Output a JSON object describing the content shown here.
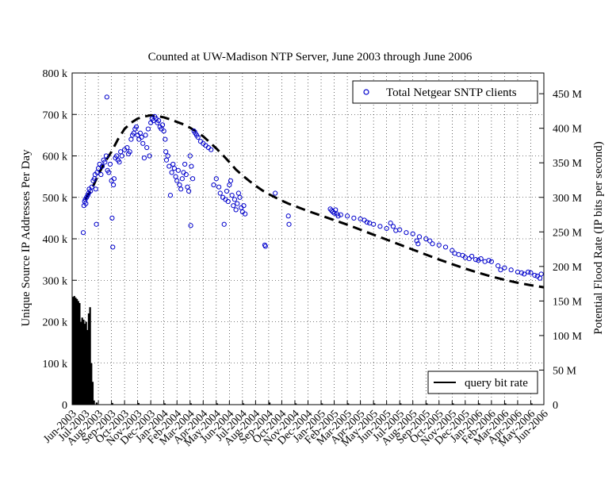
{
  "chart_data": {
    "type": "scatter",
    "title": "Counted at UW-Madison NTP Server, June 2003 through June 2006",
    "ylabel": "Unique Source IP Addresses Per Day",
    "y2label": "Potential Flood Rate (IP bits per second)",
    "ylim": [
      0,
      800000
    ],
    "y2lim": [
      0,
      480000000
    ],
    "grid": true,
    "x_tick_labels": [
      "Jun-2003",
      "Jul-2003",
      "Aug-2003",
      "Sep-2003",
      "Oct-2003",
      "Nov-2003",
      "Dec-2003",
      "Jan-2004",
      "Feb-2004",
      "Mar-2004",
      "Apr-2004",
      "May-2004",
      "Jun-2004",
      "Jul-2004",
      "Aug-2004",
      "Sep-2004",
      "Oct-2004",
      "Nov-2004",
      "Dec-2004",
      "Jan-2005",
      "Feb-2005",
      "Mar-2005",
      "Apr-2005",
      "May-2005",
      "Jun-2005",
      "Jul-2005",
      "Aug-2005",
      "Sep-2005",
      "Oct-2005",
      "Nov-2005",
      "Dec-2005",
      "Jan-2006",
      "Feb-2006",
      "Mar-2006",
      "Apr-2006",
      "May-2006",
      "Jun-2006"
    ],
    "y_tick_labels": [
      "0",
      "100 k",
      "200 k",
      "300 k",
      "400 k",
      "500 k",
      "600 k",
      "700 k",
      "800 k"
    ],
    "y_ticks": [
      0,
      100000,
      200000,
      300000,
      400000,
      500000,
      600000,
      700000,
      800000
    ],
    "y2_tick_labels": [
      "0",
      "50 M",
      "100 M",
      "150 M",
      "200 M",
      "250 M",
      "300 M",
      "350 M",
      "400 M",
      "450 M"
    ],
    "y2_ticks": [
      0,
      50000000,
      100000000,
      150000000,
      200000000,
      250000000,
      300000000,
      350000000,
      400000000,
      450000000
    ],
    "legend_top": {
      "label": "Total Netgear SNTP clients",
      "marker": "circle",
      "color": "#0000cc",
      "placement": "top-right"
    },
    "legend_bottom": {
      "label": "query bit rate",
      "style": "dashed",
      "color": "#000000",
      "placement": "bottom-right"
    },
    "series": [
      {
        "name": "Total Netgear SNTP clients",
        "kind": "scatter",
        "color": "#0000cc",
        "points": [
          [
            0.85,
            415000
          ],
          [
            0.9,
            480000
          ],
          [
            0.95,
            490000
          ],
          [
            1.0,
            495000
          ],
          [
            1.05,
            485000
          ],
          [
            1.1,
            500000
          ],
          [
            1.2,
            505000
          ],
          [
            1.25,
            510000
          ],
          [
            1.3,
            520000
          ],
          [
            1.4,
            515000
          ],
          [
            1.5,
            525000
          ],
          [
            1.6,
            540000
          ],
          [
            1.7,
            545000
          ],
          [
            1.75,
            555000
          ],
          [
            1.8,
            520000
          ],
          [
            1.85,
            435000
          ],
          [
            1.9,
            560000
          ],
          [
            2.0,
            570000
          ],
          [
            2.1,
            580000
          ],
          [
            2.2,
            555000
          ],
          [
            2.3,
            575000
          ],
          [
            2.4,
            590000
          ],
          [
            2.5,
            585000
          ],
          [
            2.6,
            600000
          ],
          [
            2.65,
            742000
          ],
          [
            2.7,
            565000
          ],
          [
            2.8,
            560000
          ],
          [
            2.9,
            580000
          ],
          [
            3.0,
            540000
          ],
          [
            3.05,
            450000
          ],
          [
            3.1,
            380000
          ],
          [
            3.15,
            530000
          ],
          [
            3.2,
            545000
          ],
          [
            3.3,
            595000
          ],
          [
            3.4,
            600000
          ],
          [
            3.5,
            590000
          ],
          [
            3.6,
            585000
          ],
          [
            3.7,
            610000
          ],
          [
            3.8,
            600000
          ],
          [
            4.0,
            615000
          ],
          [
            4.2,
            620000
          ],
          [
            4.3,
            605000
          ],
          [
            4.4,
            610000
          ],
          [
            4.5,
            640000
          ],
          [
            4.6,
            650000
          ],
          [
            4.7,
            655000
          ],
          [
            4.8,
            665000
          ],
          [
            4.9,
            670000
          ],
          [
            5.0,
            650000
          ],
          [
            5.1,
            640000
          ],
          [
            5.2,
            655000
          ],
          [
            5.3,
            645000
          ],
          [
            5.4,
            630000
          ],
          [
            5.5,
            595000
          ],
          [
            5.6,
            650000
          ],
          [
            5.7,
            620000
          ],
          [
            5.8,
            665000
          ],
          [
            5.9,
            600000
          ],
          [
            6.0,
            680000
          ],
          [
            6.1,
            690000
          ],
          [
            6.2,
            685000
          ],
          [
            6.3,
            695000
          ],
          [
            6.4,
            690000
          ],
          [
            6.5,
            680000
          ],
          [
            6.6,
            685000
          ],
          [
            6.7,
            670000
          ],
          [
            6.8,
            665000
          ],
          [
            6.9,
            675000
          ],
          [
            7.0,
            660000
          ],
          [
            7.1,
            640000
          ],
          [
            7.15,
            610000
          ],
          [
            7.2,
            590000
          ],
          [
            7.3,
            600000
          ],
          [
            7.4,
            575000
          ],
          [
            7.5,
            505000
          ],
          [
            7.6,
            560000
          ],
          [
            7.7,
            580000
          ],
          [
            7.8,
            570000
          ],
          [
            7.9,
            550000
          ],
          [
            8.0,
            540000
          ],
          [
            8.1,
            565000
          ],
          [
            8.2,
            530000
          ],
          [
            8.3,
            520000
          ],
          [
            8.4,
            545000
          ],
          [
            8.5,
            560000
          ],
          [
            8.6,
            580000
          ],
          [
            8.7,
            555000
          ],
          [
            8.8,
            525000
          ],
          [
            8.9,
            515000
          ],
          [
            9.0,
            600000
          ],
          [
            9.05,
            432000
          ],
          [
            9.1,
            575000
          ],
          [
            9.2,
            545000
          ],
          [
            9.3,
            660000
          ],
          [
            9.4,
            655000
          ],
          [
            9.5,
            650000
          ],
          [
            9.6,
            645000
          ],
          [
            9.8,
            635000
          ],
          [
            10.0,
            630000
          ],
          [
            10.2,
            625000
          ],
          [
            10.4,
            620000
          ],
          [
            10.6,
            615000
          ],
          [
            10.8,
            530000
          ],
          [
            11.0,
            545000
          ],
          [
            11.2,
            525000
          ],
          [
            11.3,
            510000
          ],
          [
            11.5,
            500000
          ],
          [
            11.6,
            435000
          ],
          [
            11.7,
            495000
          ],
          [
            11.8,
            515000
          ],
          [
            11.9,
            490000
          ],
          [
            12.0,
            530000
          ],
          [
            12.1,
            540000
          ],
          [
            12.2,
            505000
          ],
          [
            12.3,
            480000
          ],
          [
            12.4,
            495000
          ],
          [
            12.5,
            470000
          ],
          [
            12.6,
            485000
          ],
          [
            12.7,
            510000
          ],
          [
            12.8,
            500000
          ],
          [
            12.9,
            475000
          ],
          [
            13.0,
            465000
          ],
          [
            13.1,
            480000
          ],
          [
            13.2,
            460000
          ],
          [
            14.7,
            385000
          ],
          [
            14.75,
            382000
          ],
          [
            15.5,
            510000
          ],
          [
            16.5,
            455000
          ],
          [
            16.55,
            435000
          ],
          [
            19.7,
            472000
          ],
          [
            19.8,
            468000
          ],
          [
            19.9,
            465000
          ],
          [
            20.0,
            462000
          ],
          [
            20.1,
            470000
          ],
          [
            20.2,
            460000
          ],
          [
            20.3,
            455000
          ],
          [
            20.5,
            458000
          ],
          [
            21.0,
            455000
          ],
          [
            21.5,
            450000
          ],
          [
            22.0,
            448000
          ],
          [
            22.3,
            445000
          ],
          [
            22.5,
            440000
          ],
          [
            22.7,
            438000
          ],
          [
            23.0,
            435000
          ],
          [
            23.5,
            430000
          ],
          [
            24.0,
            425000
          ],
          [
            24.3,
            438000
          ],
          [
            24.5,
            430000
          ],
          [
            24.7,
            420000
          ],
          [
            25.0,
            422000
          ],
          [
            25.5,
            415000
          ],
          [
            26.0,
            412000
          ],
          [
            26.3,
            395000
          ],
          [
            26.4,
            388000
          ],
          [
            26.5,
            405000
          ],
          [
            27.0,
            400000
          ],
          [
            27.3,
            395000
          ],
          [
            27.5,
            388000
          ],
          [
            28.0,
            385000
          ],
          [
            28.5,
            380000
          ],
          [
            29.0,
            372000
          ],
          [
            29.2,
            365000
          ],
          [
            29.5,
            362000
          ],
          [
            29.8,
            360000
          ],
          [
            30.0,
            355000
          ],
          [
            30.3,
            352000
          ],
          [
            30.5,
            358000
          ],
          [
            30.8,
            350000
          ],
          [
            31.0,
            348000
          ],
          [
            31.2,
            352000
          ],
          [
            31.5,
            345000
          ],
          [
            31.8,
            348000
          ],
          [
            32.0,
            345000
          ],
          [
            32.5,
            335000
          ],
          [
            32.7,
            325000
          ],
          [
            33.0,
            330000
          ],
          [
            33.5,
            325000
          ],
          [
            34.0,
            320000
          ],
          [
            34.3,
            318000
          ],
          [
            34.5,
            315000
          ],
          [
            34.8,
            320000
          ],
          [
            35.0,
            318000
          ],
          [
            35.3,
            312000
          ],
          [
            35.5,
            310000
          ],
          [
            35.7,
            305000
          ],
          [
            35.8,
            315000
          ]
        ]
      },
      {
        "name": "query bit rate",
        "kind": "dashed-line",
        "color": "#000000",
        "points": [
          [
            1.0,
            495000
          ],
          [
            1.5,
            520000
          ],
          [
            2.0,
            555000
          ],
          [
            2.5,
            585000
          ],
          [
            3.0,
            610000
          ],
          [
            3.5,
            640000
          ],
          [
            4.0,
            665000
          ],
          [
            4.5,
            680000
          ],
          [
            5.0,
            690000
          ],
          [
            5.5,
            695000
          ],
          [
            6.0,
            698000
          ],
          [
            6.5,
            696000
          ],
          [
            7.0,
            693000
          ],
          [
            7.5,
            688000
          ],
          [
            8.0,
            682000
          ],
          [
            8.5,
            676000
          ],
          [
            9.0,
            668000
          ],
          [
            9.5,
            658000
          ],
          [
            10.0,
            647000
          ],
          [
            10.5,
            633000
          ],
          [
            11.0,
            618000
          ],
          [
            11.5,
            602000
          ],
          [
            12.0,
            585000
          ],
          [
            12.5,
            567000
          ],
          [
            13.0,
            553000
          ],
          [
            13.5,
            540000
          ],
          [
            14.0,
            528000
          ],
          [
            14.5,
            517000
          ],
          [
            15.0,
            508000
          ],
          [
            15.5,
            500000
          ],
          [
            16.0,
            492000
          ],
          [
            16.5,
            485000
          ],
          [
            17.0,
            479000
          ],
          [
            17.5,
            473000
          ],
          [
            18.0,
            467000
          ],
          [
            19.0,
            456000
          ],
          [
            20.0,
            445000
          ],
          [
            21.0,
            434000
          ],
          [
            22.0,
            422000
          ],
          [
            23.0,
            410000
          ],
          [
            24.0,
            398000
          ],
          [
            25.0,
            386000
          ],
          [
            26.0,
            374000
          ],
          [
            27.0,
            362000
          ],
          [
            28.0,
            350000
          ],
          [
            29.0,
            339000
          ],
          [
            30.0,
            328000
          ],
          [
            31.0,
            318000
          ],
          [
            32.0,
            309000
          ],
          [
            33.0,
            301000
          ],
          [
            34.0,
            294000
          ],
          [
            35.0,
            288000
          ],
          [
            36.0,
            283000
          ]
        ]
      },
      {
        "name": "daily query volume (bars)",
        "kind": "bar",
        "color": "#000000",
        "points": [
          [
            0.0,
            260000
          ],
          [
            0.1,
            262000
          ],
          [
            0.2,
            258000
          ],
          [
            0.3,
            255000
          ],
          [
            0.4,
            250000
          ],
          [
            0.5,
            245000
          ],
          [
            0.6,
            200000
          ],
          [
            0.7,
            210000
          ],
          [
            0.8,
            205000
          ],
          [
            0.9,
            195000
          ],
          [
            1.0,
            200000
          ],
          [
            1.1,
            180000
          ],
          [
            1.2,
            220000
          ],
          [
            1.3,
            235000
          ],
          [
            1.4,
            100000
          ],
          [
            1.5,
            55000
          ],
          [
            1.6,
            10000
          ],
          [
            1.8,
            5000
          ],
          [
            3.0,
            4000
          ],
          [
            5.0,
            4000
          ],
          [
            7.0,
            3000
          ],
          [
            9.0,
            3000
          ],
          [
            11.0,
            3000
          ],
          [
            13.0,
            3000
          ],
          [
            15.0,
            5000
          ],
          [
            17.0,
            3000
          ],
          [
            19.0,
            3000
          ],
          [
            21.0,
            3000
          ],
          [
            23.0,
            3000
          ],
          [
            25.0,
            3000
          ],
          [
            27.0,
            3000
          ],
          [
            29.0,
            3000
          ],
          [
            31.0,
            3000
          ],
          [
            33.0,
            3000
          ],
          [
            35.0,
            3000
          ]
        ]
      }
    ]
  }
}
